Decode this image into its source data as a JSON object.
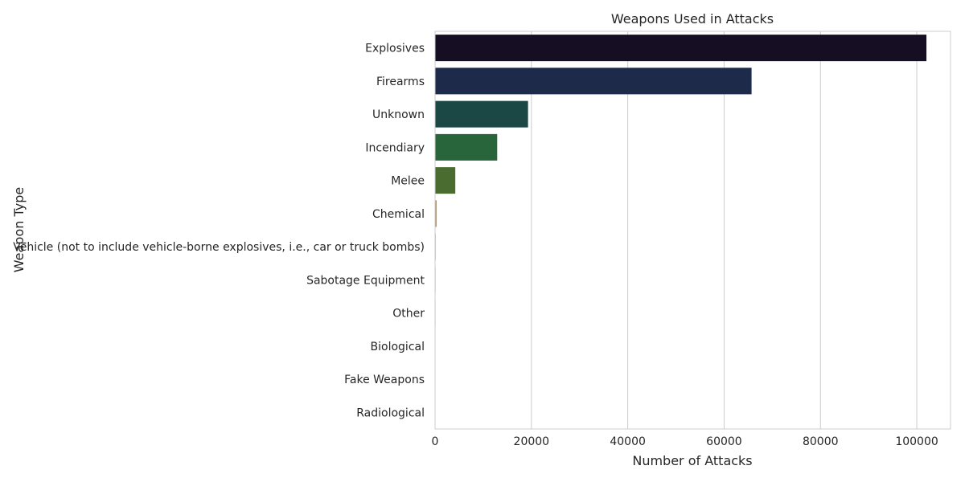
{
  "chart_data": {
    "type": "bar",
    "orientation": "horizontal",
    "title": "Weapons Used in Attacks",
    "xlabel": "Number of Attacks",
    "ylabel": "Weapon Type",
    "categories": [
      "Explosives",
      "Firearms",
      "Unknown",
      "Incendiary",
      "Melee",
      "Chemical",
      "Vehicle (not to include vehicle-borne explosives, i.e., car or truck bombs)",
      "Sabotage Equipment",
      "Other",
      "Biological",
      "Fake Weapons",
      "Radiological"
    ],
    "values": [
      102000,
      65700,
      19300,
      12900,
      4200,
      320,
      140,
      120,
      110,
      35,
      30,
      15
    ],
    "colors": [
      "#160f24",
      "#1d2a4a",
      "#1b4845",
      "#28653b",
      "#4a6c30",
      "#a88f6c",
      "#c8a3a0",
      "#d2b3c0",
      "#d9c6d6",
      "#e3d8e6",
      "#ece7ef",
      "#f3f1f5"
    ],
    "xlim": [
      0,
      107000
    ],
    "xticks": [
      0,
      20000,
      40000,
      60000,
      80000,
      100000
    ],
    "grid": true
  }
}
